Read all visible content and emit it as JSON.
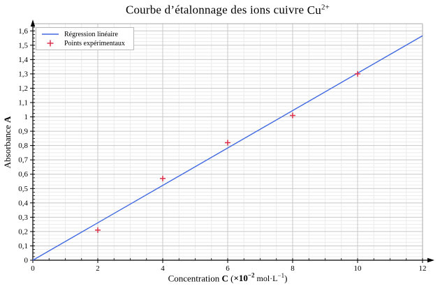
{
  "title": {
    "main": "Courbe d’étalonnage des ions cuivre ",
    "formula": "Cu",
    "formula_sup": "2+"
  },
  "ylabel": {
    "pre": "Absorbance ",
    "symbol": "A"
  },
  "xlabel": {
    "pre": "Concentration ",
    "symbol": "C",
    "open": " (",
    "factor": "×10",
    "factor_exp": "−2",
    "unit": " mol·L",
    "unit_exp": "−1",
    "close": ")"
  },
  "legend": {
    "items": [
      {
        "label": "Régression linéaire",
        "sample": "line"
      },
      {
        "label": "Points expérimentaux",
        "sample": "plus"
      }
    ]
  },
  "colors": {
    "line": "#4169E1",
    "marker": "#DC2F49",
    "grid_major": "#c8c8c8",
    "grid_minor": "#ececec",
    "frame": "#a8a8a8",
    "axis": "#000000"
  },
  "chart_data": {
    "type": "scatter",
    "title": "Courbe d’étalonnage des ions cuivre Cu²⁺",
    "xlabel": "Concentration C (×10⁻² mol·L⁻¹)",
    "ylabel": "Absorbance A",
    "xlim": [
      0,
      12
    ],
    "ylim": [
      0,
      1.65
    ],
    "grid": true,
    "legend_position": "top-left",
    "x_ticks": [
      0,
      2,
      4,
      6,
      8,
      10,
      12
    ],
    "x_tick_labels": [
      "0",
      "2",
      "4",
      "6",
      "8",
      "10",
      "12"
    ],
    "x_minor_step": 0.5,
    "y_ticks": [
      0,
      0.1,
      0.2,
      0.3,
      0.4,
      0.5,
      0.6,
      0.7,
      0.8,
      0.9,
      1.0,
      1.1,
      1.2,
      1.3,
      1.4,
      1.5,
      1.6
    ],
    "y_tick_labels": [
      "0",
      "0,1",
      "0,2",
      "0,3",
      "0,4",
      "0,5",
      "0,6",
      "0,7",
      "0,8",
      "0,9",
      "1",
      "1,1",
      "1,2",
      "1,3",
      "1,4",
      "1,5",
      "1,6"
    ],
    "y_minor_step": 0.025,
    "series": [
      {
        "name": "Régression linéaire",
        "type": "line",
        "color": "#4169E1",
        "slope": 0.1305,
        "intercept": 0,
        "x_range": [
          0,
          12
        ]
      },
      {
        "name": "Points expérimentaux",
        "type": "scatter",
        "marker": "+",
        "color": "#DC2F49",
        "x": [
          2,
          4,
          6,
          8,
          10
        ],
        "y": [
          0.21,
          0.57,
          0.82,
          1.01,
          1.3
        ]
      }
    ]
  }
}
